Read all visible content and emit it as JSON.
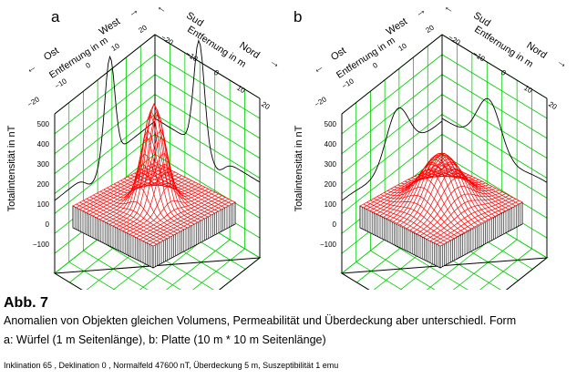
{
  "panels": [
    {
      "letter": "a",
      "axis_z_label": "Totalintensität in nT",
      "z_ticks": [
        "500",
        "400",
        "300",
        "200",
        "100",
        "0",
        "−100"
      ],
      "west_label": "West",
      "ost_label": "Ost",
      "sud_label": "Sud",
      "nord_label": "Nord",
      "arrow_left": "←",
      "arrow_right": "→",
      "distance_label_left": "Entfernung in m",
      "distance_label_right": "Entfernung in m",
      "ticks_left": [
        "−20",
        "−10",
        "0",
        "10",
        "20"
      ],
      "ticks_right": [
        "−20",
        "−10",
        "0",
        "10",
        "20"
      ]
    },
    {
      "letter": "b",
      "axis_z_label": "Totalintensität in nT",
      "z_ticks": [
        "500",
        "400",
        "300",
        "200",
        "100",
        "0",
        "−100"
      ],
      "west_label": "West",
      "ost_label": "Ost",
      "sud_label": "Sud",
      "nord_label": "Nord",
      "arrow_left": "←",
      "arrow_right": "→",
      "distance_label_left": "Entfernung in m",
      "distance_label_right": "Entfernung in m",
      "ticks_left": [
        "−20",
        "−10",
        "0",
        "10",
        "20"
      ],
      "ticks_right": [
        "−20",
        "−10",
        "0",
        "10",
        "20"
      ]
    }
  ],
  "caption": {
    "title": "Abb. 7",
    "line1": "Anomalien von Objekten gleichen Volumens, Permeabilität und Überdeckung aber unterschiedl. Form",
    "line2": "a: Würfel (1 m Seitenlänge), b: Platte (10 m * 10 m Seitenlänge)",
    "footnote": "Inklination 65 , Deklination 0 , Normalfeld 47600 nT, Überdeckung 5 m, Suszeptibilität 1 emu"
  },
  "colors": {
    "grid": "#00cc00",
    "surface": "#ff0000",
    "axes": "#000000"
  }
}
